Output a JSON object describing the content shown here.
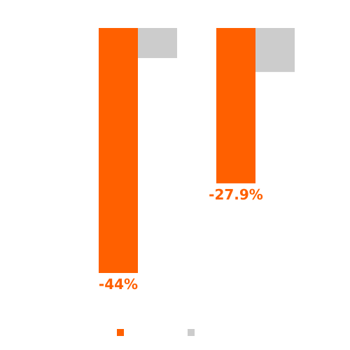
{
  "colors": {
    "primary": "#ff6000",
    "secondary": "#cccccc",
    "background": "#ffffff"
  },
  "chart_data": {
    "type": "bar",
    "categories": [
      "",
      ""
    ],
    "series": [
      {
        "values": [
          -44,
          -27.9
        ],
        "color": "#ff6000"
      },
      {
        "values": [
          -5.4,
          -7.9
        ],
        "color": "#cccccc"
      }
    ],
    "data_labels": [
      "-44%",
      "-27.9%"
    ],
    "ylim": [
      -44,
      0
    ],
    "grid": false,
    "legend": "bottom-center"
  }
}
